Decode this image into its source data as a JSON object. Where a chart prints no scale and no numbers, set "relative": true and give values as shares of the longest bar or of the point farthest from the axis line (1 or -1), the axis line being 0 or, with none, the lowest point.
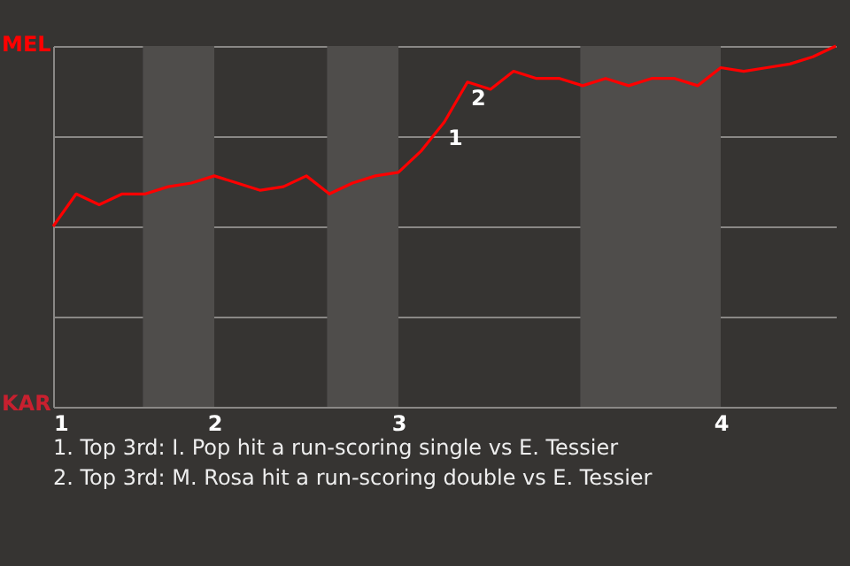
{
  "chart_data": {
    "type": "line",
    "categories": [
      "1",
      null,
      null,
      null,
      null,
      null,
      null,
      "2",
      null,
      null,
      null,
      null,
      null,
      null,
      null,
      "3",
      null,
      null,
      null,
      null,
      null,
      null,
      null,
      null,
      null,
      null,
      null,
      null,
      null,
      "4",
      null,
      null,
      null,
      null,
      null
    ],
    "relative": true,
    "series": [
      {
        "color": "#ff0000",
        "values": [
          0.5,
          0.59,
          0.56,
          0.59,
          0.59,
          0.61,
          0.62,
          0.64,
          0.62,
          0.6,
          0.61,
          0.64,
          0.59,
          0.62,
          0.64,
          0.65,
          0.71,
          0.79,
          0.9,
          0.88,
          0.93,
          0.91,
          0.91,
          0.89,
          0.91,
          0.89,
          0.91,
          0.91,
          0.89,
          0.94,
          0.93,
          0.94,
          0.95,
          0.97,
          1
        ]
      }
    ],
    "grid": "y",
    "annotations": [
      "MEL",
      "KAR",
      {
        "text": "1",
        "y": 0.79
      },
      {
        "text": "2",
        "y": 0.9
      },
      "1. Top 3rd: I. Pop hit a run-scoring single vs E. Tessier",
      "2. Top 3rd: M. Rosa hit a run-scoring double vs E. Tessier"
    ]
  }
}
